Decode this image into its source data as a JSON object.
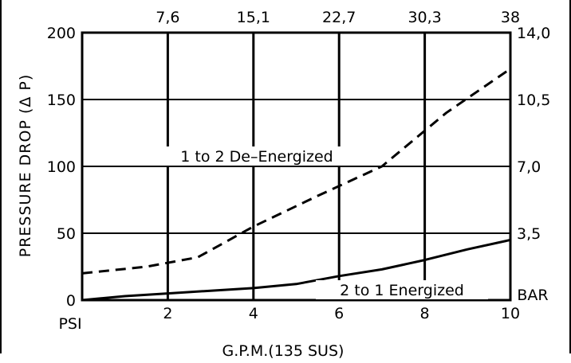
{
  "chart_data": {
    "type": "line",
    "title": "",
    "xlabel": "G.P.M.(135 SUS)",
    "ylabel": "PRESSURE DROP (Δ P)",
    "x_unit_label": "",
    "y_unit_label": "PSI",
    "y2_unit_label": "BAR",
    "xlim": [
      0,
      10
    ],
    "ylim": [
      0,
      200
    ],
    "x_ticks": [
      {
        "value": 2,
        "label": "2"
      },
      {
        "value": 4,
        "label": "4"
      },
      {
        "value": 6,
        "label": "6"
      },
      {
        "value": 8,
        "label": "8"
      },
      {
        "value": 10,
        "label": "10"
      }
    ],
    "x2_ticks": [
      {
        "value": 2,
        "label": "7,6"
      },
      {
        "value": 4,
        "label": "15,1"
      },
      {
        "value": 6,
        "label": "22,7"
      },
      {
        "value": 8,
        "label": "30,3"
      },
      {
        "value": 10,
        "label": "38"
      }
    ],
    "y_ticks": [
      {
        "value": 0,
        "label": "0"
      },
      {
        "value": 50,
        "label": "50"
      },
      {
        "value": 100,
        "label": "100"
      },
      {
        "value": 150,
        "label": "150"
      },
      {
        "value": 200,
        "label": "200"
      }
    ],
    "y2_ticks": [
      {
        "value": 50,
        "label": "3,5"
      },
      {
        "value": 100,
        "label": "7,0"
      },
      {
        "value": 150,
        "label": "10,5"
      },
      {
        "value": 200,
        "label": "14,0"
      }
    ],
    "grid": true,
    "series": [
      {
        "name": "1 to 2 De–Energized",
        "style": "dashed",
        "x": [
          0,
          1.5,
          2.7,
          4.0,
          5.5,
          7.0,
          8.5,
          10.0
        ],
        "y": [
          20,
          25,
          32,
          55,
          78,
          100,
          140,
          173
        ]
      },
      {
        "name": "2 to 1 Energized",
        "style": "solid",
        "x": [
          0,
          1.0,
          2.0,
          3.0,
          4.0,
          5.0,
          6.0,
          7.0,
          8.0,
          9.0,
          10.0
        ],
        "y": [
          0,
          3,
          5,
          7,
          9,
          12,
          18,
          23,
          30,
          38,
          45
        ]
      }
    ],
    "colors": {
      "line": "#000000",
      "grid": "#000000",
      "background": "#ffffff"
    }
  }
}
